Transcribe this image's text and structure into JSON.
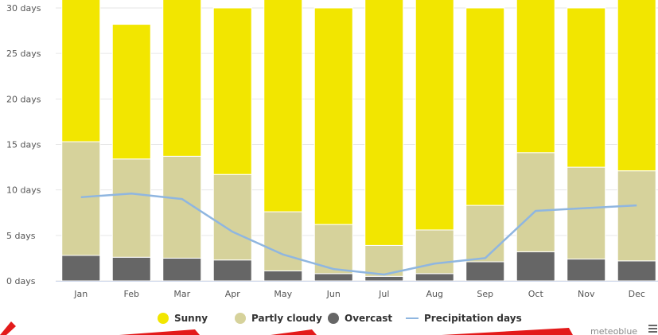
{
  "chart_data": {
    "type": "bar",
    "stacked": true,
    "categories": [
      "Jan",
      "Feb",
      "Mar",
      "Apr",
      "May",
      "Jun",
      "Jul",
      "Aug",
      "Sep",
      "Oct",
      "Nov",
      "Dec"
    ],
    "y_ticks": [
      "0 days",
      "5 days",
      "10 days",
      "15 days",
      "20 days",
      "25 days",
      "30 days"
    ],
    "ylim": [
      0,
      30
    ],
    "grid": true,
    "legend_position": "bottom",
    "series": [
      {
        "name": "Overcast",
        "kind": "bar",
        "color": "#666666",
        "values": [
          2.8,
          2.6,
          2.5,
          2.3,
          1.1,
          0.8,
          0.5,
          0.8,
          2.1,
          3.2,
          2.4,
          2.2
        ]
      },
      {
        "name": "Partly cloudy",
        "kind": "bar",
        "color": "#d6d29b",
        "values": [
          12.5,
          10.8,
          11.2,
          9.4,
          6.5,
          5.4,
          3.4,
          4.8,
          6.2,
          10.9,
          10.1,
          9.9
        ]
      },
      {
        "name": "Sunny",
        "kind": "bar",
        "color": "#f2e600",
        "values": [
          15.7,
          14.8,
          17.3,
          18.3,
          23.4,
          23.8,
          27.1,
          25.4,
          21.7,
          16.9,
          17.5,
          18.9
        ]
      },
      {
        "name": "Precipitation days",
        "kind": "line",
        "color": "#8fb6e0",
        "values": [
          9.2,
          9.6,
          9.0,
          5.4,
          2.9,
          1.3,
          0.7,
          1.9,
          2.5,
          7.7,
          8.0,
          8.3
        ]
      }
    ],
    "legend": [
      "Sunny",
      "Partly cloudy",
      "Overcast",
      "Precipitation days"
    ]
  },
  "credits": "meteoblue",
  "menu_icon": "hamburger-menu-icon"
}
